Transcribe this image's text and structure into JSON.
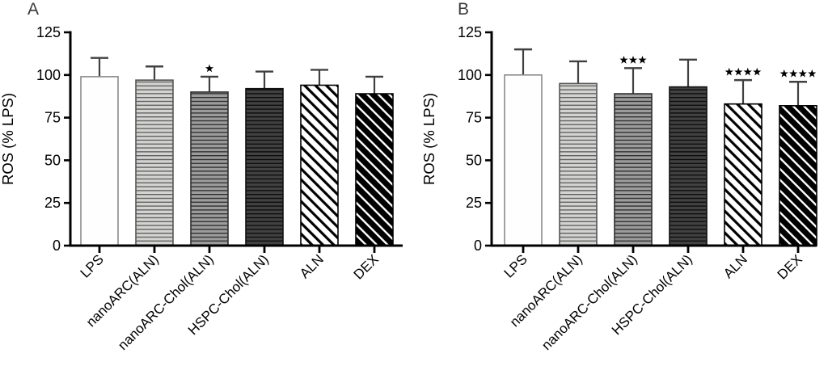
{
  "figure": {
    "background": "#ffffff"
  },
  "chart_data": [
    {
      "type": "bar",
      "panel": "A",
      "title": "",
      "ylabel": "ROS (% LPS)",
      "xlabel": "",
      "categories": [
        "LPS",
        "nanoARC(ALN)",
        "nanoARC-Chol(ALN)",
        "HSPC-Chol(ALN)",
        "ALN",
        "DEX"
      ],
      "values": [
        99,
        97,
        90,
        92,
        94,
        89
      ],
      "errors_upper": [
        11,
        8,
        9,
        10,
        9,
        10
      ],
      "significance": [
        "",
        "",
        "*",
        "",
        "",
        ""
      ],
      "yticks": [
        0,
        25,
        50,
        75,
        100,
        125
      ],
      "ylim": [
        0,
        125
      ],
      "grid": false,
      "legend": "none"
    },
    {
      "type": "bar",
      "panel": "B",
      "title": "",
      "ylabel": "ROS (% LPS)",
      "xlabel": "",
      "categories": [
        "LPS",
        "nanoARC(ALN)",
        "nanoARC-Chol(ALN)",
        "HSPC-Chol(ALN)",
        "ALN",
        "DEX"
      ],
      "values": [
        100,
        95,
        89,
        93,
        83,
        82
      ],
      "errors_upper": [
        15,
        13,
        15,
        16,
        14,
        14
      ],
      "significance": [
        "",
        "",
        "***",
        "",
        "****",
        "****"
      ],
      "yticks": [
        0,
        25,
        50,
        75,
        100,
        125
      ],
      "ylim": [
        0,
        125
      ],
      "grid": false,
      "legend": "none"
    }
  ],
  "styles": {
    "axis_color": "#000000",
    "text_color": "#000000",
    "panel_letter_color": "#3a3a3a",
    "error_bar_color": "#404040",
    "significance_color": "#000000",
    "bar_styles": [
      {
        "name": "open-white",
        "pattern": "none",
        "fill": "#fefefe",
        "stroke": "#8a8a8a"
      },
      {
        "name": "hlines-light-gray",
        "pattern": "hlines",
        "fill": "#d3d3d1",
        "line": "#5e5e5e",
        "stroke": "#565656"
      },
      {
        "name": "hlines-medium-gray",
        "pattern": "hlines",
        "fill": "#9c9c9c",
        "line": "#2e2e2e",
        "stroke": "#2e2e2e"
      },
      {
        "name": "hlines-dark-gray",
        "pattern": "hlines",
        "fill": "#414141",
        "line": "#0c0c0c",
        "stroke": "#111111"
      },
      {
        "name": "diagonal-open",
        "pattern": "diag",
        "fill": "#ffffff",
        "line": "#000000",
        "stroke": "#000000",
        "line_width": 3.2,
        "period": 9.5
      },
      {
        "name": "diagonal-black",
        "pattern": "diag",
        "fill": "#000000",
        "line": "#ffffff",
        "stroke": "#000000",
        "line_width": 2.4,
        "period": 9.5
      }
    ]
  }
}
